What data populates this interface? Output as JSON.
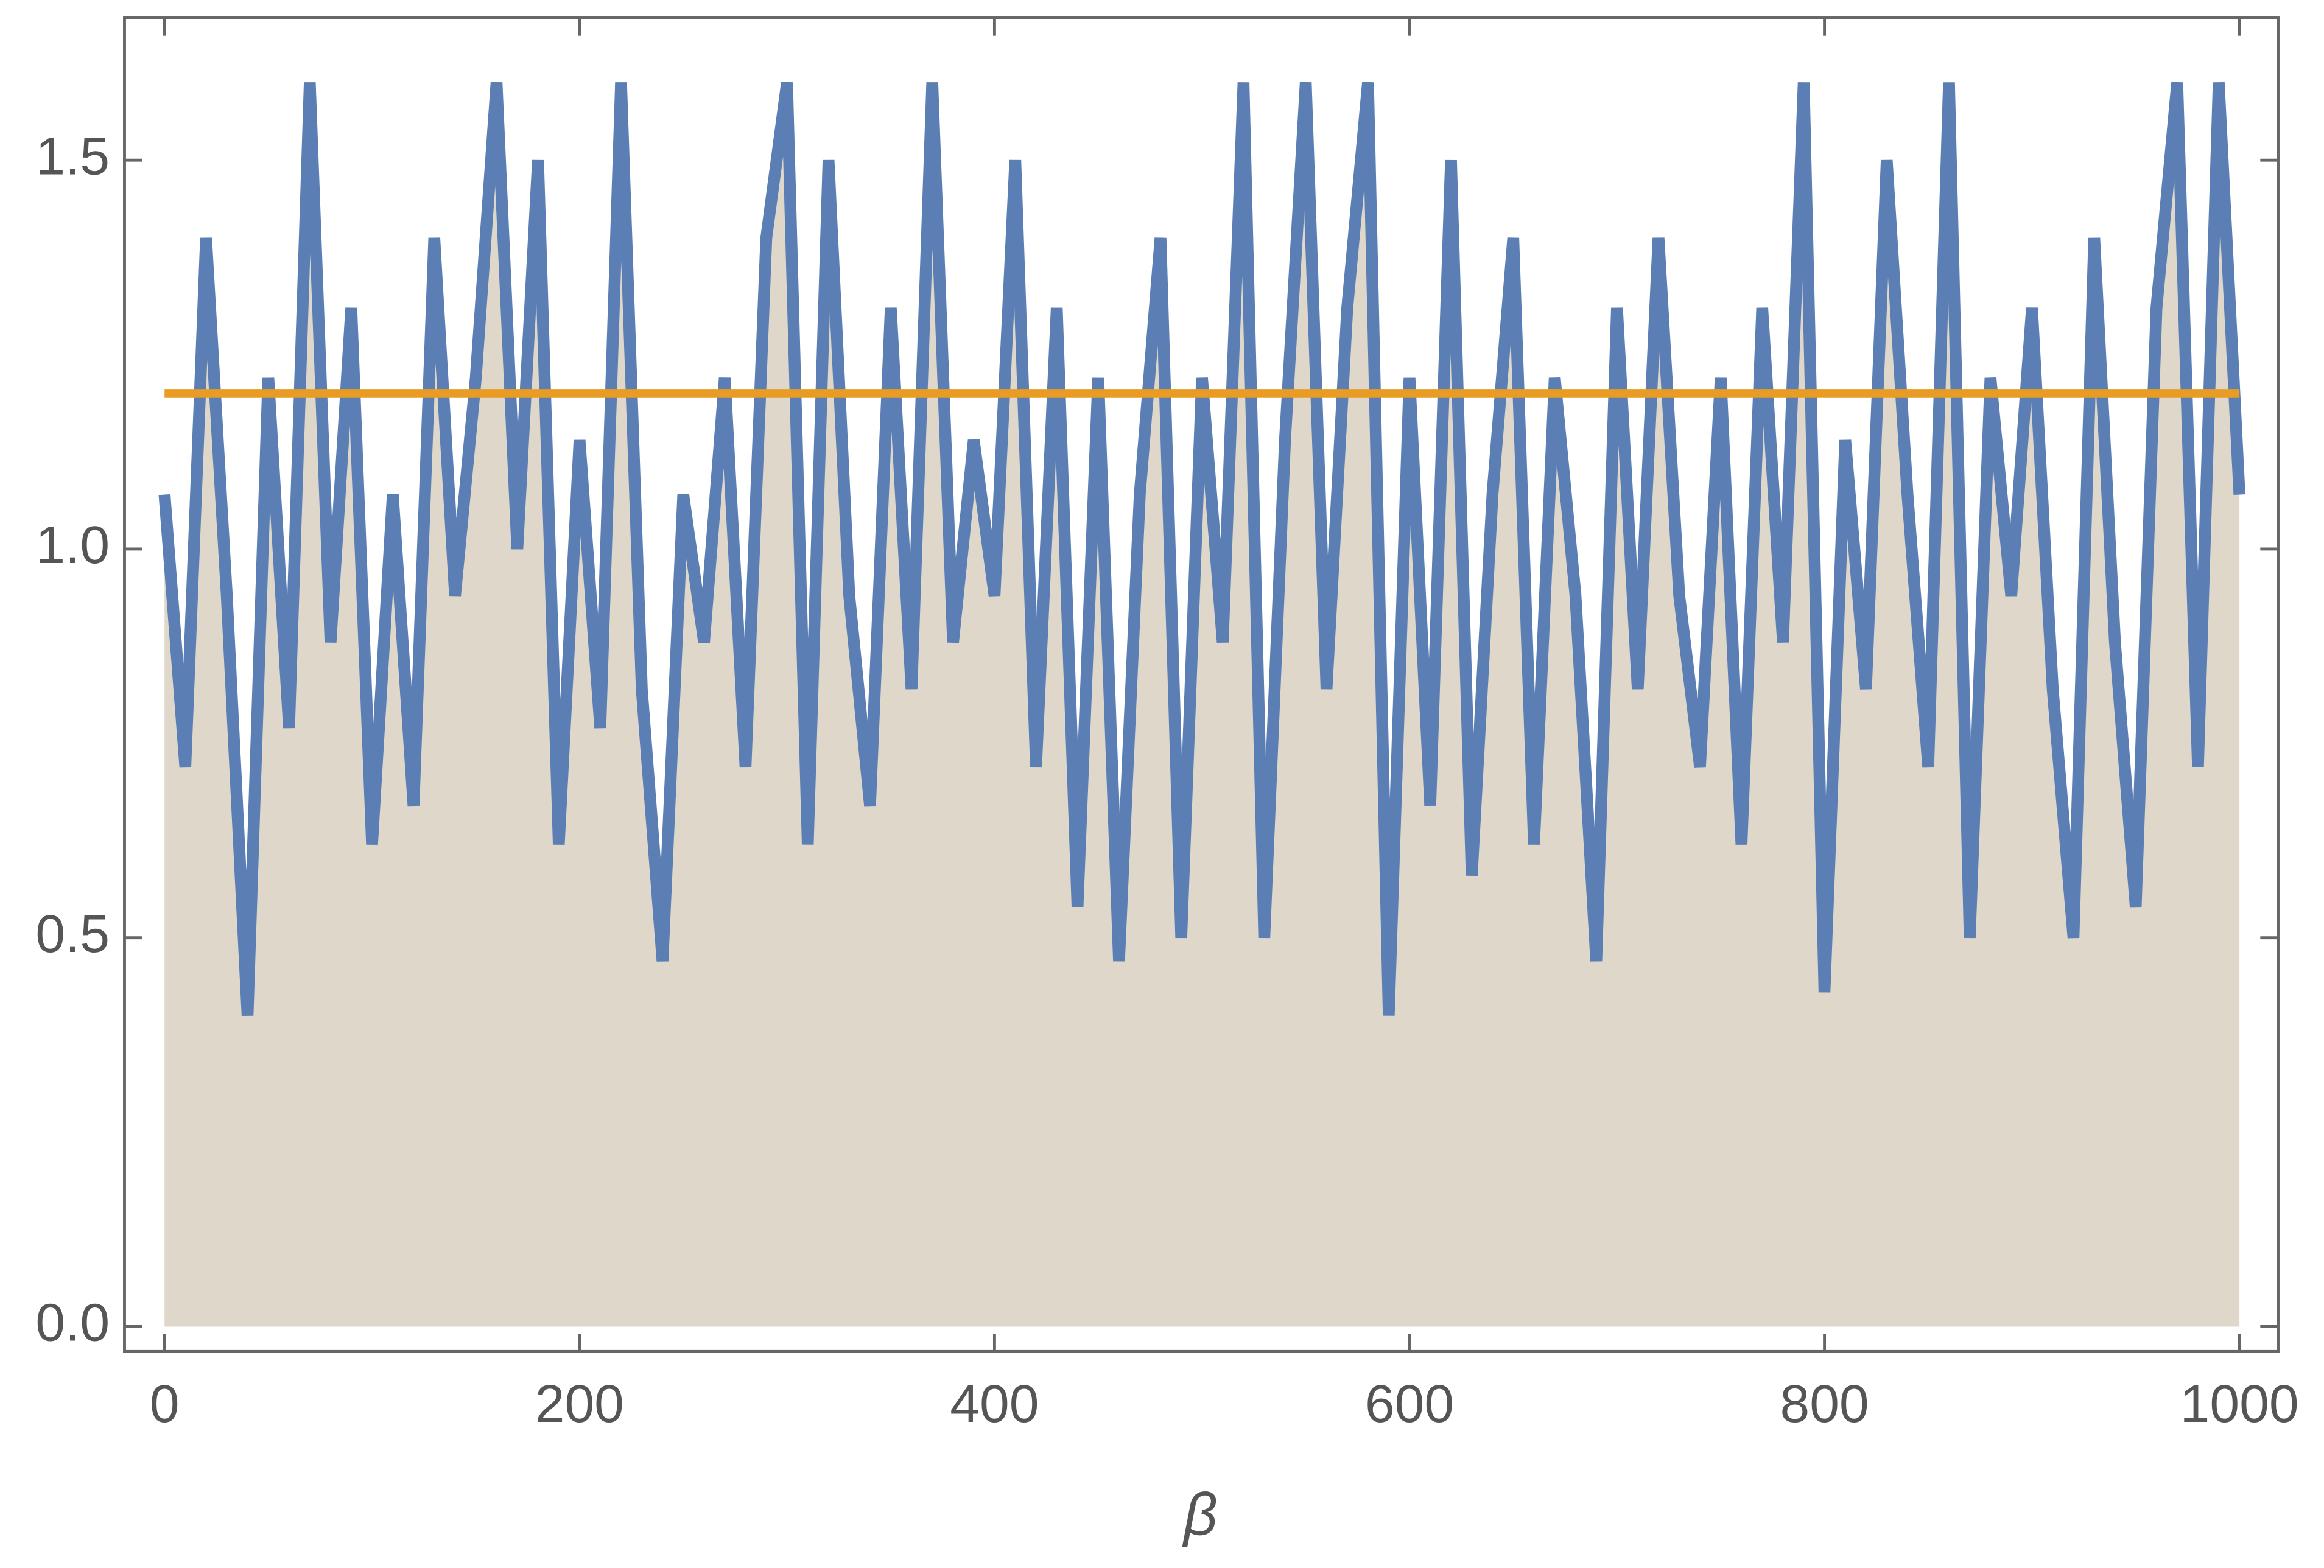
{
  "chart_data": {
    "type": "line",
    "xlabel": "β",
    "xlim": [
      -19.3,
      1018.6
    ],
    "ylim": [
      -0.032,
      1.683
    ],
    "xticks": [
      0,
      200,
      400,
      600,
      800,
      1000
    ],
    "yticks": [
      {
        "value": 0,
        "label": "0.0"
      },
      {
        "value": 0.5,
        "label": "0.5"
      },
      {
        "value": 1,
        "label": "1.0"
      },
      {
        "value": 1.5,
        "label": "1.5"
      }
    ],
    "series": [
      {
        "color": "#5b7fb4",
        "fill": "#ded7ca",
        "x": [
          0,
          10,
          20,
          30,
          40,
          50,
          60,
          70,
          80,
          90,
          100,
          110,
          120,
          130,
          140,
          150,
          160,
          170,
          180,
          190,
          200,
          210,
          220,
          230,
          240,
          250,
          260,
          270,
          280,
          290,
          300,
          310,
          320,
          330,
          340,
          350,
          360,
          370,
          380,
          390,
          400,
          410,
          420,
          430,
          440,
          450,
          460,
          470,
          480,
          490,
          500,
          510,
          520,
          530,
          540,
          550,
          560,
          570,
          580,
          590,
          600,
          610,
          620,
          630,
          640,
          650,
          660,
          670,
          680,
          690,
          700,
          710,
          720,
          730,
          740,
          750,
          760,
          770,
          780,
          790,
          800,
          810,
          820,
          830,
          840,
          850,
          860,
          870,
          880,
          890,
          900,
          910,
          920,
          930,
          940,
          950,
          960,
          970,
          980,
          990,
          1000
        ],
        "values": [
          1.07,
          0.72,
          1.4,
          0.94,
          0.4,
          1.22,
          0.77,
          1.6,
          0.88,
          1.31,
          0.62,
          1.07,
          0.67,
          1.4,
          0.94,
          1.22,
          1.6,
          1.0,
          1.5,
          0.62,
          1.14,
          0.77,
          1.6,
          0.82,
          0.47,
          1.07,
          0.88,
          1.22,
          0.72,
          1.4,
          1.6,
          0.62,
          1.5,
          0.94,
          0.67,
          1.31,
          0.82,
          1.6,
          0.88,
          1.14,
          0.94,
          1.5,
          0.72,
          1.31,
          0.54,
          1.22,
          0.47,
          1.07,
          1.4,
          0.5,
          1.22,
          0.88,
          1.6,
          0.5,
          1.14,
          1.6,
          0.82,
          1.31,
          1.6,
          0.4,
          1.22,
          0.67,
          1.5,
          0.58,
          1.07,
          1.4,
          0.62,
          1.22,
          0.94,
          0.47,
          1.31,
          0.82,
          1.4,
          0.94,
          0.72,
          1.22,
          0.62,
          1.31,
          0.88,
          1.6,
          0.43,
          1.14,
          0.82,
          1.5,
          1.07,
          0.72,
          1.6,
          0.5,
          1.22,
          0.94,
          1.31,
          0.82,
          0.5,
          1.4,
          0.88,
          0.54,
          1.31,
          1.6,
          0.72,
          1.6,
          1.07
        ]
      },
      {
        "color": "#e89c23",
        "x": [
          0,
          1000
        ],
        "values": [
          1.2,
          1.2
        ]
      }
    ]
  }
}
